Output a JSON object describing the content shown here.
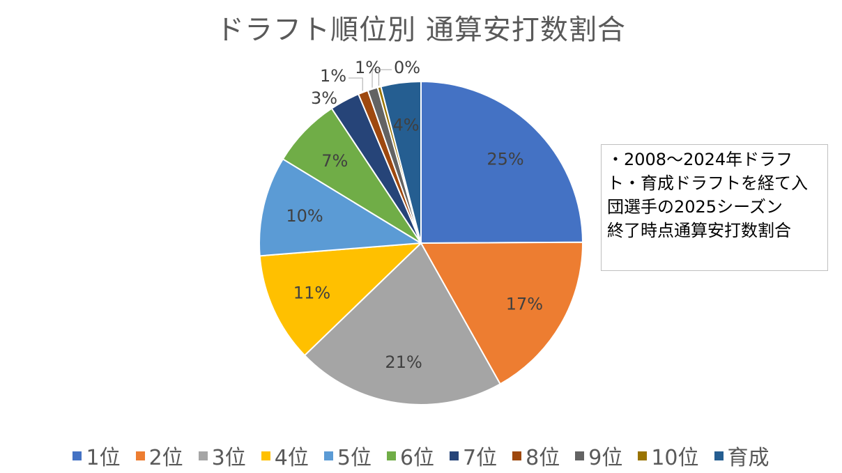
{
  "chart_data": {
    "type": "pie",
    "title": "ドラフト順位別 通算安打数割合",
    "categories": [
      "1位",
      "2位",
      "3位",
      "4位",
      "5位",
      "6位",
      "7位",
      "8位",
      "9位",
      "10位",
      "育成"
    ],
    "values": [
      25,
      17,
      21,
      11,
      10,
      7,
      3,
      1,
      1,
      0,
      4
    ],
    "data_labels": [
      "25%",
      "17%",
      "21%",
      "11%",
      "10%",
      "7%",
      "3%",
      "1%",
      "1%",
      "0%",
      "4%"
    ],
    "colors": [
      "#4472C4",
      "#ED7D31",
      "#A5A5A5",
      "#FFC000",
      "#5B9BD5",
      "#70AD47",
      "#264478",
      "#9E480E",
      "#636363",
      "#997300",
      "#255E91"
    ],
    "legend_position": "bottom"
  },
  "note": {
    "lines": [
      "・2008～2024年ドラフ",
      "ト・育成ドラフトを経て入",
      "団選手の2025シーズン",
      "終了時点通算安打数割合"
    ]
  }
}
